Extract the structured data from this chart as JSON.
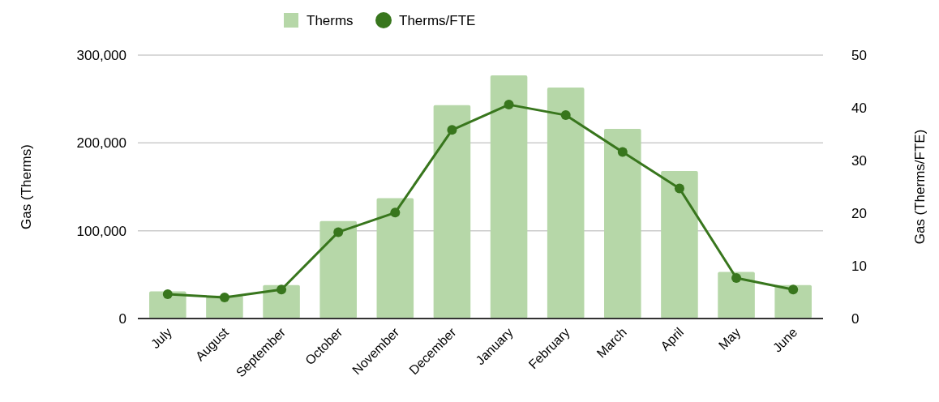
{
  "chart_data": {
    "type": "bar",
    "categories": [
      "July",
      "August",
      "September",
      "October",
      "November",
      "December",
      "January",
      "February",
      "March",
      "April",
      "May",
      "June"
    ],
    "series": [
      {
        "name": "Therms",
        "color": "#b6d7a8",
        "values": [
          31000,
          26000,
          38000,
          111000,
          137000,
          243000,
          277000,
          263000,
          216000,
          168000,
          53000,
          38000
        ]
      },
      {
        "name": "Therms/FTE",
        "type": "line",
        "axis": "y2",
        "color": "#38761d",
        "values": [
          4.6,
          4.0,
          5.5,
          16.4,
          20.1,
          35.8,
          40.6,
          38.6,
          31.6,
          24.7,
          7.7,
          5.5
        ]
      }
    ],
    "ylabel": "Gas (Therms)",
    "y2label": "Gas (Therms/FTE)",
    "ylim": [
      0,
      300000
    ],
    "yticks": [
      {
        "value": 0,
        "label": "0"
      },
      {
        "value": 100000,
        "label": "100,000"
      },
      {
        "value": 200000,
        "label": "200,000"
      },
      {
        "value": 300000,
        "label": "300,000"
      }
    ],
    "y2lim": [
      0,
      50
    ],
    "y2ticks": [
      0,
      10,
      20,
      30,
      40,
      50
    ],
    "grid": "y",
    "legend": "top",
    "marker": "circle",
    "line_style": "solid"
  }
}
